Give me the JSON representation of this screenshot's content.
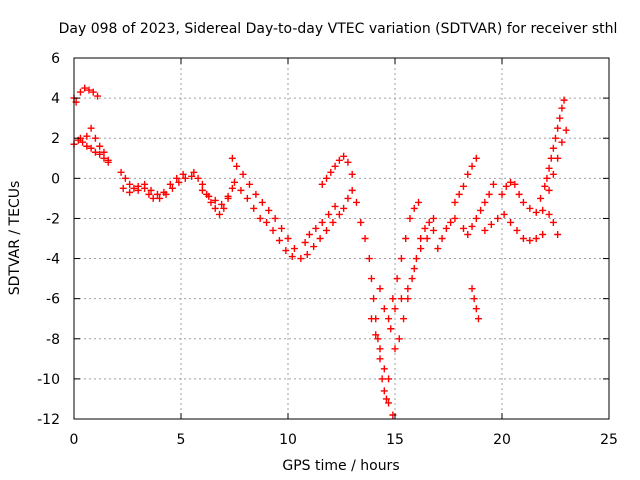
{
  "chart_data": {
    "type": "scatter",
    "title": "Day 098 of 2023, Sidereal Day-to-day VTEC variation (SDTVAR) for receiver sthl",
    "xlabel": "GPS time / hours",
    "ylabel": "SDTVAR / TECUs",
    "xlim": [
      0,
      25
    ],
    "ylim": [
      -12,
      6
    ],
    "x_ticks": [
      "0",
      "5",
      "10",
      "15",
      "20",
      "25"
    ],
    "y_ticks": [
      "6",
      "4",
      "2",
      "0",
      "-2",
      "-4",
      "-6",
      "-8",
      "-10",
      "-12"
    ],
    "grid": true,
    "marker": "plus",
    "color": "#ff0000",
    "series": [
      {
        "points": [
          [
            0.0,
            4.0
          ],
          [
            0.1,
            3.8
          ],
          [
            0.3,
            4.3
          ],
          [
            0.5,
            4.5
          ],
          [
            0.7,
            4.4
          ],
          [
            0.9,
            4.3
          ],
          [
            1.1,
            4.1
          ],
          [
            0.0,
            1.7
          ],
          [
            0.2,
            1.9
          ],
          [
            0.4,
            1.8
          ],
          [
            0.6,
            1.6
          ],
          [
            0.8,
            1.5
          ],
          [
            1.0,
            1.3
          ],
          [
            1.2,
            1.2
          ],
          [
            1.4,
            1.0
          ],
          [
            1.6,
            0.9
          ],
          [
            0.3,
            2.0
          ],
          [
            0.6,
            2.1
          ],
          [
            0.8,
            2.5
          ],
          [
            1.0,
            2.0
          ],
          [
            1.2,
            1.6
          ],
          [
            1.4,
            1.3
          ],
          [
            1.6,
            0.8
          ],
          [
            2.2,
            0.3
          ],
          [
            2.4,
            0.0
          ],
          [
            2.6,
            -0.3
          ],
          [
            2.8,
            -0.5
          ],
          [
            3.0,
            -0.4
          ],
          [
            3.3,
            -0.5
          ],
          [
            3.5,
            -0.8
          ],
          [
            3.7,
            -1.0
          ],
          [
            4.0,
            -1.0
          ],
          [
            4.3,
            -0.8
          ],
          [
            4.6,
            -0.5
          ],
          [
            4.9,
            -0.2
          ],
          [
            5.2,
            0.0
          ],
          [
            5.5,
            0.1
          ],
          [
            2.3,
            -0.5
          ],
          [
            2.6,
            -0.7
          ],
          [
            3.0,
            -0.6
          ],
          [
            3.3,
            -0.3
          ],
          [
            3.6,
            -0.6
          ],
          [
            3.9,
            -0.8
          ],
          [
            4.2,
            -0.7
          ],
          [
            4.5,
            -0.3
          ],
          [
            4.8,
            0.0
          ],
          [
            5.1,
            0.2
          ],
          [
            5.6,
            0.3
          ],
          [
            5.8,
            0.0
          ],
          [
            6.0,
            -0.3
          ],
          [
            6.2,
            -0.8
          ],
          [
            6.4,
            -1.2
          ],
          [
            6.6,
            -1.5
          ],
          [
            6.8,
            -1.8
          ],
          [
            7.0,
            -1.5
          ],
          [
            7.2,
            -1.0
          ],
          [
            7.4,
            -0.5
          ],
          [
            6.0,
            -0.6
          ],
          [
            6.3,
            -0.9
          ],
          [
            6.6,
            -1.1
          ],
          [
            6.9,
            -1.3
          ],
          [
            7.2,
            -0.9
          ],
          [
            7.5,
            -0.2
          ],
          [
            7.4,
            1.0
          ],
          [
            7.6,
            0.6
          ],
          [
            7.9,
            0.2
          ],
          [
            8.2,
            -0.3
          ],
          [
            8.5,
            -0.8
          ],
          [
            8.8,
            -1.2
          ],
          [
            9.1,
            -1.6
          ],
          [
            9.4,
            -2.0
          ],
          [
            9.7,
            -2.5
          ],
          [
            10.0,
            -3.0
          ],
          [
            10.3,
            -3.5
          ],
          [
            10.6,
            -4.0
          ],
          [
            7.8,
            -0.6
          ],
          [
            8.1,
            -1.0
          ],
          [
            8.4,
            -1.5
          ],
          [
            8.7,
            -2.0
          ],
          [
            9.0,
            -2.2
          ],
          [
            9.3,
            -2.6
          ],
          [
            9.6,
            -3.1
          ],
          [
            9.9,
            -3.6
          ],
          [
            10.2,
            -3.9
          ],
          [
            10.8,
            -3.2
          ],
          [
            11.0,
            -2.8
          ],
          [
            11.3,
            -2.5
          ],
          [
            11.6,
            -2.2
          ],
          [
            11.9,
            -1.8
          ],
          [
            12.2,
            -1.4
          ],
          [
            10.9,
            -3.8
          ],
          [
            11.2,
            -3.4
          ],
          [
            11.5,
            -3.0
          ],
          [
            11.8,
            -2.6
          ],
          [
            12.1,
            -2.2
          ],
          [
            12.4,
            -1.8
          ],
          [
            11.6,
            -0.3
          ],
          [
            11.8,
            0.0
          ],
          [
            12.0,
            0.3
          ],
          [
            12.2,
            0.6
          ],
          [
            12.4,
            0.9
          ],
          [
            12.6,
            1.1
          ],
          [
            12.8,
            0.8
          ],
          [
            13.0,
            0.2
          ],
          [
            12.6,
            -1.5
          ],
          [
            12.8,
            -1.0
          ],
          [
            13.0,
            -0.6
          ],
          [
            13.2,
            -1.2
          ],
          [
            13.4,
            -2.2
          ],
          [
            13.6,
            -3.0
          ],
          [
            13.8,
            -4.0
          ],
          [
            13.9,
            -5.0
          ],
          [
            14.0,
            -6.0
          ],
          [
            14.1,
            -7.0
          ],
          [
            14.2,
            -8.0
          ],
          [
            14.3,
            -9.0
          ],
          [
            14.4,
            -10.0
          ],
          [
            14.5,
            -10.6
          ],
          [
            14.6,
            -11.0
          ],
          [
            14.7,
            -11.2
          ],
          [
            13.9,
            -7.0
          ],
          [
            14.1,
            -7.8
          ],
          [
            14.3,
            -8.5
          ],
          [
            14.5,
            -9.5
          ],
          [
            14.7,
            -10.0
          ],
          [
            14.3,
            -5.5
          ],
          [
            14.5,
            -6.5
          ],
          [
            14.7,
            -7.0
          ],
          [
            14.9,
            -6.0
          ],
          [
            15.1,
            -5.0
          ],
          [
            15.3,
            -4.0
          ],
          [
            15.5,
            -3.0
          ],
          [
            15.7,
            -2.0
          ],
          [
            15.9,
            -1.5
          ],
          [
            16.1,
            -1.2
          ],
          [
            14.8,
            -7.5
          ],
          [
            15.0,
            -8.5
          ],
          [
            15.2,
            -8.0
          ],
          [
            15.4,
            -7.0
          ],
          [
            15.6,
            -6.0
          ],
          [
            15.8,
            -5.0
          ],
          [
            16.0,
            -4.0
          ],
          [
            16.2,
            -3.0
          ],
          [
            16.4,
            -2.5
          ],
          [
            16.6,
            -2.2
          ],
          [
            16.8,
            -2.0
          ],
          [
            14.9,
            -11.8
          ],
          [
            15.0,
            -6.5
          ],
          [
            15.3,
            -6.0
          ],
          [
            15.6,
            -5.5
          ],
          [
            15.9,
            -4.5
          ],
          [
            16.2,
            -3.5
          ],
          [
            16.5,
            -3.0
          ],
          [
            16.8,
            -2.6
          ],
          [
            17.0,
            -3.5
          ],
          [
            17.2,
            -3.0
          ],
          [
            17.4,
            -2.5
          ],
          [
            17.6,
            -2.2
          ],
          [
            17.8,
            -2.0
          ],
          [
            17.8,
            -1.2
          ],
          [
            18.0,
            -0.8
          ],
          [
            18.2,
            -0.4
          ],
          [
            18.4,
            0.2
          ],
          [
            18.6,
            0.6
          ],
          [
            18.8,
            1.0
          ],
          [
            18.2,
            -2.5
          ],
          [
            18.4,
            -2.8
          ],
          [
            18.6,
            -2.4
          ],
          [
            18.8,
            -2.0
          ],
          [
            19.0,
            -1.6
          ],
          [
            19.2,
            -1.2
          ],
          [
            19.4,
            -0.8
          ],
          [
            19.6,
            -0.3
          ],
          [
            18.6,
            -5.5
          ],
          [
            18.7,
            -6.0
          ],
          [
            18.8,
            -6.5
          ],
          [
            18.9,
            -7.0
          ],
          [
            19.2,
            -2.6
          ],
          [
            19.5,
            -2.3
          ],
          [
            19.8,
            -2.0
          ],
          [
            20.1,
            -1.8
          ],
          [
            20.4,
            -2.2
          ],
          [
            20.7,
            -2.6
          ],
          [
            21.0,
            -3.0
          ],
          [
            21.3,
            -3.1
          ],
          [
            21.6,
            -3.0
          ],
          [
            21.9,
            -2.8
          ],
          [
            20.0,
            -0.8
          ],
          [
            20.2,
            -0.4
          ],
          [
            20.4,
            -0.2
          ],
          [
            20.6,
            -0.3
          ],
          [
            20.8,
            -0.8
          ],
          [
            21.0,
            -1.2
          ],
          [
            21.3,
            -1.5
          ],
          [
            21.6,
            -1.7
          ],
          [
            21.9,
            -1.6
          ],
          [
            22.2,
            -1.8
          ],
          [
            22.4,
            -2.2
          ],
          [
            22.6,
            -2.8
          ],
          [
            21.8,
            -1.0
          ],
          [
            22.0,
            -0.4
          ],
          [
            22.1,
            0.0
          ],
          [
            22.2,
            0.5
          ],
          [
            22.3,
            1.0
          ],
          [
            22.4,
            1.5
          ],
          [
            22.5,
            2.0
          ],
          [
            22.6,
            2.5
          ],
          [
            22.7,
            3.0
          ],
          [
            22.8,
            3.5
          ],
          [
            22.9,
            3.9
          ],
          [
            22.2,
            -0.6
          ],
          [
            22.4,
            0.2
          ],
          [
            22.6,
            1.0
          ],
          [
            22.8,
            1.8
          ],
          [
            23.0,
            2.4
          ]
        ]
      }
    ]
  }
}
